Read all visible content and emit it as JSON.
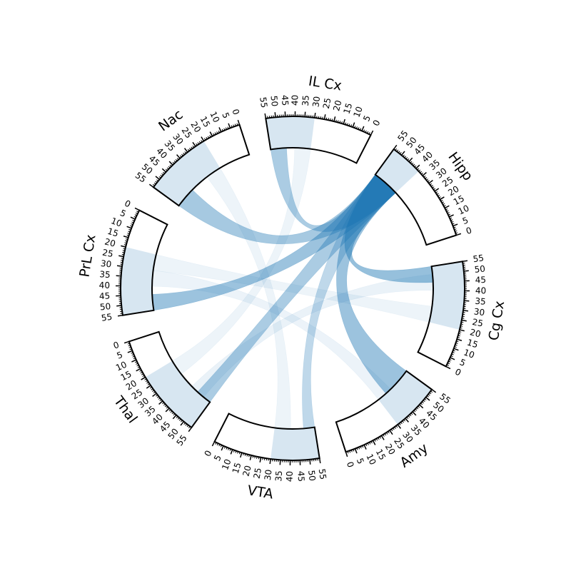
{
  "chart_data": {
    "type": "chord",
    "title": "",
    "accent_color": "#1f77b4",
    "tick_values": [
      0,
      5,
      10,
      15,
      20,
      25,
      30,
      35,
      40,
      45,
      50,
      55
    ],
    "segments": [
      {
        "name": "Cg Cx",
        "size": 55
      },
      {
        "name": "Amy",
        "size": 55
      },
      {
        "name": "VTA",
        "size": 55
      },
      {
        "name": "Thal",
        "size": 55
      },
      {
        "name": "PrL Cx",
        "size": 55
      },
      {
        "name": "Nac",
        "size": 55
      },
      {
        "name": "IL Cx",
        "size": 55
      },
      {
        "name": "Hipp",
        "size": 55
      }
    ],
    "links": [
      {
        "source": "Hipp",
        "source_range": [
          38,
          55
        ],
        "target": "Cg Cx",
        "target_range": [
          45,
          55
        ],
        "strength": 0.9
      },
      {
        "source": "Hipp",
        "source_range": [
          38,
          55
        ],
        "target": "Amy",
        "target_range": [
          36,
          55
        ],
        "strength": 0.85
      },
      {
        "source": "Hipp",
        "source_range": [
          38,
          55
        ],
        "target": "IL Cx",
        "target_range": [
          45,
          55
        ],
        "strength": 0.7
      },
      {
        "source": "Hipp",
        "source_range": [
          38,
          55
        ],
        "target": "Nac",
        "target_range": [
          42,
          55
        ],
        "strength": 0.75
      },
      {
        "source": "Hipp",
        "source_range": [
          38,
          55
        ],
        "target": "PrL Cx",
        "target_range": [
          45,
          55
        ],
        "strength": 0.85
      },
      {
        "source": "Hipp",
        "source_range": [
          38,
          55
        ],
        "target": "Thal",
        "target_range": [
          45,
          55
        ],
        "strength": 0.7
      },
      {
        "source": "Hipp",
        "source_range": [
          38,
          55
        ],
        "target": "VTA",
        "target_range": [
          48,
          55
        ],
        "strength": 0.5
      },
      {
        "source": "Cg Cx",
        "source_range": [
          40,
          50
        ],
        "target": "Thal",
        "target_range": [
          40,
          50
        ],
        "strength": 0.08
      },
      {
        "source": "Amy",
        "source_range": [
          30,
          40
        ],
        "target": "PrL Cx",
        "target_range": [
          30,
          40
        ],
        "strength": 0.06
      },
      {
        "source": "VTA",
        "source_range": [
          30,
          40
        ],
        "target": "Nac",
        "target_range": [
          20,
          30
        ],
        "strength": 0.05
      },
      {
        "source": "IL Cx",
        "source_range": [
          30,
          40
        ],
        "target": "Thal",
        "target_range": [
          20,
          30
        ],
        "strength": 0.05
      },
      {
        "source": "Cg Cx",
        "source_range": [
          20,
          30
        ],
        "target": "PrL Cx",
        "target_range": [
          20,
          30
        ],
        "strength": 0.05
      }
    ]
  }
}
